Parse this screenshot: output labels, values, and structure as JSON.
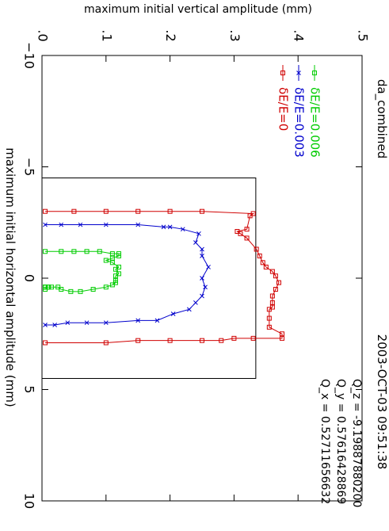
{
  "header": {
    "name": "da_combined",
    "datetime": "2003-OCT-03 09:51:38"
  },
  "tunes": [
    "Q_x  =  0.52711656632",
    "Q_y  =  0.57616428869",
    "Q_z  =  -9.19887880200"
  ],
  "chart_data": {
    "type": "line",
    "title": "",
    "xlabel": "maximum initial horizontal amplitude (mm)",
    "ylabel": "maximum initial vertical amplitude (mm)",
    "xlim": [
      -10,
      10
    ],
    "ylim": [
      0,
      0.5
    ],
    "xticks": [
      -10,
      -5,
      0,
      5,
      10
    ],
    "xtick_labels": [
      "−10",
      "−5",
      "0",
      "5",
      "10"
    ],
    "yticks": [
      0,
      0.1,
      0.2,
      0.3,
      0.4,
      0.5
    ],
    "ytick_labels": [
      ".0",
      ".1",
      ".2",
      ".3",
      ".4",
      ".5"
    ],
    "legend_position": "top-right",
    "aperture": {
      "x": [
        -4.5,
        -4.5,
        4.5,
        4.5
      ],
      "y": [
        0,
        0.334,
        0.334,
        0
      ]
    },
    "series": [
      {
        "name": "δE/E=0",
        "color": "#d00000",
        "marker": "square",
        "x": [
          -3.0,
          -3.0,
          -3.0,
          -3.0,
          -3.0,
          -3.0,
          -2.9,
          -2.8,
          -2.2,
          -2.1,
          -2.0,
          -1.8,
          -1.3,
          -1.0,
          -0.7,
          -0.5,
          -0.3,
          -0.1,
          0.2,
          0.5,
          0.8,
          1.1,
          1.3,
          1.4,
          1.8,
          2.2,
          2.5,
          2.7,
          2.7,
          2.7,
          2.8,
          2.8,
          2.8,
          2.8,
          2.9,
          2.9
        ],
        "y": [
          0.005,
          0.05,
          0.1,
          0.15,
          0.2,
          0.25,
          0.33,
          0.325,
          0.32,
          0.305,
          0.31,
          0.32,
          0.335,
          0.34,
          0.345,
          0.35,
          0.36,
          0.365,
          0.37,
          0.365,
          0.36,
          0.36,
          0.36,
          0.355,
          0.355,
          0.355,
          0.375,
          0.375,
          0.33,
          0.3,
          0.28,
          0.25,
          0.2,
          0.15,
          0.1,
          0.005
        ]
      },
      {
        "name": "δE/E=0.003",
        "color": "#0000cc",
        "marker": "x",
        "x": [
          -2.4,
          -2.4,
          -2.4,
          -2.4,
          -2.4,
          -2.3,
          -2.3,
          -2.2,
          -2.0,
          -1.6,
          -1.3,
          -1.0,
          -0.5,
          0.0,
          0.4,
          0.8,
          1.1,
          1.4,
          1.6,
          1.9,
          1.9,
          2.0,
          2.0,
          2.0,
          2.1,
          2.1
        ],
        "y": [
          0.005,
          0.03,
          0.06,
          0.1,
          0.15,
          0.19,
          0.2,
          0.22,
          0.245,
          0.24,
          0.25,
          0.25,
          0.26,
          0.25,
          0.255,
          0.25,
          0.24,
          0.23,
          0.205,
          0.18,
          0.15,
          0.1,
          0.07,
          0.04,
          0.02,
          0.005
        ]
      },
      {
        "name": "δE/E=0.006",
        "color": "#00cc00",
        "marker": "square",
        "x": [
          -1.2,
          -1.2,
          -1.2,
          -1.2,
          -1.2,
          -1.1,
          -1.1,
          -1.0,
          -0.9,
          -0.8,
          -0.7,
          -0.5,
          -0.4,
          -0.2,
          -0.1,
          0.1,
          0.2,
          0.3,
          0.4,
          0.5,
          0.6,
          0.6,
          0.5,
          0.4,
          0.4,
          0.4,
          0.4,
          0.4,
          0.5,
          0.4,
          0.4
        ],
        "y": [
          0.005,
          0.03,
          0.05,
          0.07,
          0.09,
          0.11,
          0.12,
          0.12,
          0.11,
          0.1,
          0.11,
          0.12,
          0.115,
          0.12,
          0.115,
          0.115,
          0.115,
          0.11,
          0.1,
          0.08,
          0.06,
          0.045,
          0.03,
          0.025,
          0.015,
          0.01,
          0.01,
          0.005,
          0.005,
          0.005,
          0.005
        ]
      }
    ]
  }
}
